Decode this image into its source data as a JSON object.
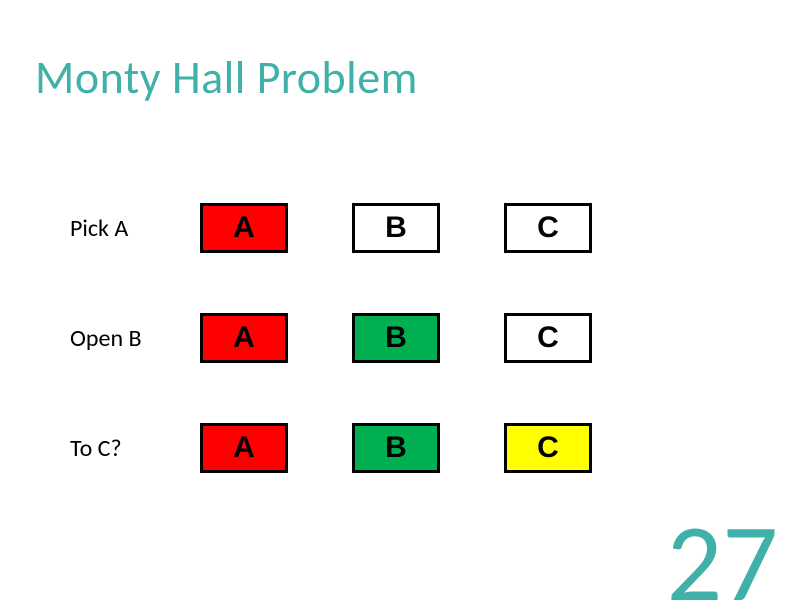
{
  "title": {
    "text": "Monty Hall Problem",
    "color": "#3fb1a8",
    "fontsize": 46
  },
  "rows": [
    {
      "label": "Pick A",
      "boxes": [
        {
          "letter": "A",
          "bg": "#ff0000",
          "fg": "#000000"
        },
        {
          "letter": "B",
          "bg": "#ffffff",
          "fg": "#000000"
        },
        {
          "letter": "C",
          "bg": "#ffffff",
          "fg": "#000000"
        }
      ]
    },
    {
      "label": "Open B",
      "boxes": [
        {
          "letter": "A",
          "bg": "#ff0000",
          "fg": "#000000"
        },
        {
          "letter": "B",
          "bg": "#00b050",
          "fg": "#000000"
        },
        {
          "letter": "C",
          "bg": "#ffffff",
          "fg": "#000000"
        }
      ]
    },
    {
      "label": "To C?",
      "boxes": [
        {
          "letter": "A",
          "bg": "#ff0000",
          "fg": "#000000"
        },
        {
          "letter": "B",
          "bg": "#00b050",
          "fg": "#000000"
        },
        {
          "letter": "C",
          "bg": "#ffff00",
          "fg": "#000000"
        }
      ]
    }
  ],
  "row_top_positions": [
    200,
    310,
    420
  ],
  "box_border_color": "#000000",
  "page_number": {
    "text": "27",
    "color": "#3fb1a8"
  }
}
